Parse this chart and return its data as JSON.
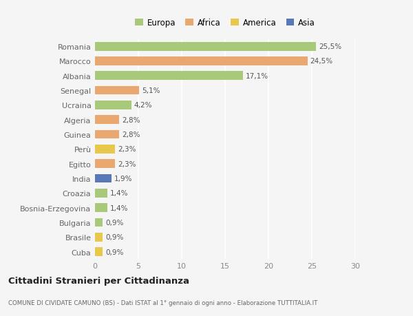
{
  "countries": [
    "Romania",
    "Marocco",
    "Albania",
    "Senegal",
    "Ucraina",
    "Algeria",
    "Guinea",
    "Perù",
    "Egitto",
    "India",
    "Croazia",
    "Bosnia-Erzegovina",
    "Bulgaria",
    "Brasile",
    "Cuba"
  ],
  "values": [
    25.5,
    24.5,
    17.1,
    5.1,
    4.2,
    2.8,
    2.8,
    2.3,
    2.3,
    1.9,
    1.4,
    1.4,
    0.9,
    0.9,
    0.9
  ],
  "labels": [
    "25,5%",
    "24,5%",
    "17,1%",
    "5,1%",
    "4,2%",
    "2,8%",
    "2,8%",
    "2,3%",
    "2,3%",
    "1,9%",
    "1,4%",
    "1,4%",
    "0,9%",
    "0,9%",
    "0,9%"
  ],
  "colors": [
    "#a8c87a",
    "#e8a870",
    "#a8c87a",
    "#e8a870",
    "#a8c87a",
    "#e8a870",
    "#e8a870",
    "#e8c84a",
    "#e8a870",
    "#5878b8",
    "#a8c87a",
    "#a8c87a",
    "#a8c87a",
    "#e8c84a",
    "#e8c84a"
  ],
  "legend_labels": [
    "Europa",
    "Africa",
    "America",
    "Asia"
  ],
  "legend_colors": [
    "#a8c87a",
    "#e8a870",
    "#e8c84a",
    "#5878b8"
  ],
  "title": "Cittadini Stranieri per Cittadinanza",
  "subtitle": "COMUNE DI CIVIDATE CAMUNO (BS) - Dati ISTAT al 1° gennaio di ogni anno - Elaborazione TUTTITALIA.IT",
  "xlim": [
    0,
    30
  ],
  "xticks": [
    0,
    5,
    10,
    15,
    20,
    25,
    30
  ],
  "background_color": "#f5f5f5",
  "grid_color": "#ffffff",
  "bar_height": 0.6
}
